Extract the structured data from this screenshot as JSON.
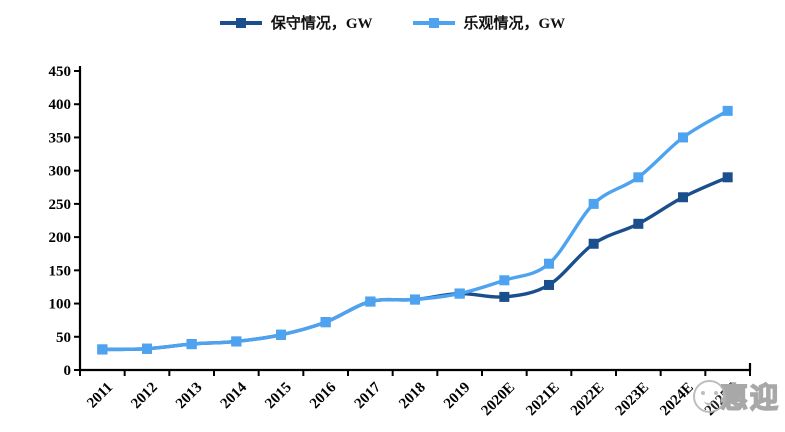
{
  "legend": {
    "items": [
      {
        "label": "保守情况，GW",
        "color": "#1B4E8C"
      },
      {
        "label": "乐观情况，GW",
        "color": "#4DA3F0"
      }
    ]
  },
  "chart_data": {
    "type": "line",
    "title": "",
    "xlabel": "",
    "ylabel": "",
    "categories": [
      "2011",
      "2012",
      "2013",
      "2014",
      "2015",
      "2016",
      "2017",
      "2018",
      "2019",
      "2020E",
      "2021E",
      "2022E",
      "2023E",
      "2024E",
      "2025E"
    ],
    "series": [
      {
        "name": "保守情况，GW",
        "color": "#1B4E8C",
        "values": [
          31,
          32,
          39,
          43,
          53,
          72,
          103,
          106,
          115,
          110,
          128,
          190,
          220,
          260,
          290
        ]
      },
      {
        "name": "乐观情况，GW",
        "color": "#4DA3F0",
        "values": [
          31,
          32,
          39,
          43,
          53,
          72,
          103,
          106,
          115,
          135,
          160,
          250,
          290,
          350,
          390
        ]
      }
    ],
    "ylim": [
      0,
      450
    ],
    "ytick_step": 50,
    "yticks": [
      "0",
      "50",
      "100",
      "150",
      "200",
      "250",
      "300",
      "350",
      "400",
      "450"
    ],
    "grid": false,
    "legend_position": "top",
    "line_style": "smooth",
    "marker": "square"
  },
  "watermark": {
    "text": "惠迎"
  }
}
